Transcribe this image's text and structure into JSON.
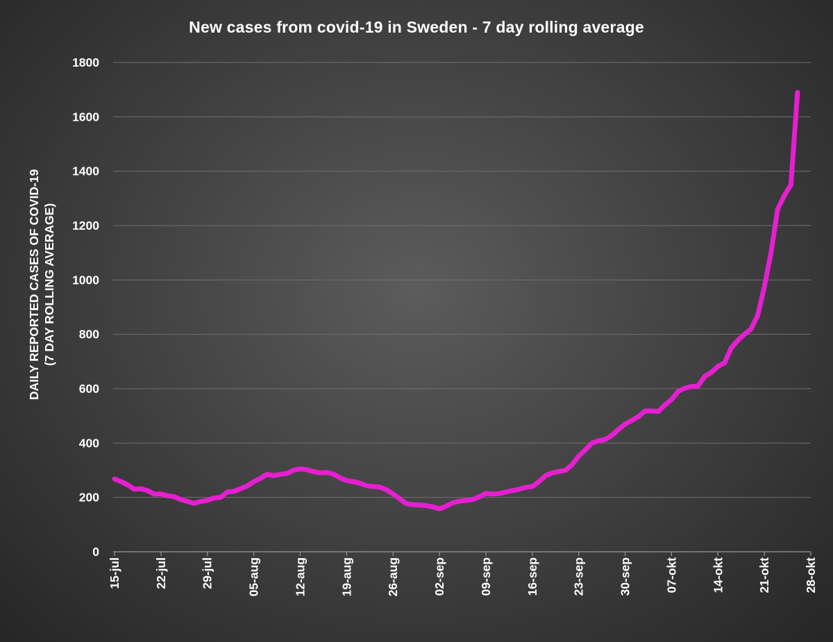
{
  "chart_data": {
    "type": "line",
    "title": "New cases from covid-19 in Sweden - 7 day rolling average",
    "ylabel_lines": [
      "DAILY REPORTED CASES OF COVID-19",
      "(7 DAY ROLLING AVERAGE)"
    ],
    "xlabel": "",
    "ylim": [
      0,
      1800
    ],
    "y_ticks": [
      0,
      200,
      400,
      600,
      800,
      1000,
      1200,
      1400,
      1600,
      1800
    ],
    "x_tick_labels": [
      "15-jul",
      "22-jul",
      "29-jul",
      "05-aug",
      "12-aug",
      "19-aug",
      "26-aug",
      "02-sep",
      "09-sep",
      "16-sep",
      "23-sep",
      "30-sep",
      "07-okt",
      "14-okt",
      "21-okt",
      "28-okt"
    ],
    "x_tick_step_days": 7,
    "grid": true,
    "colors": {
      "series": "#e61fd1",
      "grid": "#707070",
      "text": "#ffffff"
    },
    "series": [
      {
        "name": "New cases (7 day rolling average)",
        "x_day_start": 0,
        "values": [
          268,
          258,
          246,
          230,
          232,
          225,
          212,
          213,
          206,
          203,
          192,
          185,
          178,
          185,
          189,
          198,
          200,
          220,
          222,
          232,
          242,
          258,
          270,
          285,
          280,
          285,
          288,
          300,
          305,
          302,
          295,
          290,
          292,
          286,
          272,
          262,
          258,
          252,
          243,
          240,
          238,
          228,
          213,
          195,
          177,
          173,
          172,
          170,
          165,
          158,
          168,
          180,
          186,
          189,
          192,
          202,
          215,
          212,
          214,
          220,
          225,
          230,
          237,
          240,
          258,
          280,
          290,
          295,
          300,
          320,
          352,
          375,
          400,
          408,
          413,
          428,
          450,
          470,
          483,
          497,
          518,
          518,
          516,
          540,
          560,
          590,
          602,
          608,
          610,
          645,
          660,
          682,
          695,
          750,
          778,
          800,
          820,
          870,
          975,
          1100,
          1260,
          1310,
          1350,
          1690
        ]
      }
    ]
  }
}
